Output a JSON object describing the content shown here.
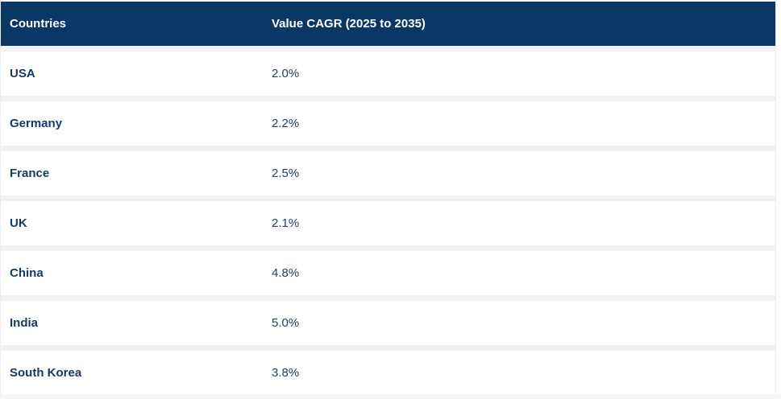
{
  "colors": {
    "header_bg": "#0b3766",
    "header_text": "#ffffff",
    "row_bg": "#ffffff",
    "separator": "#f1f1f5",
    "country_text": "#17386b",
    "value_text": "#1c406f"
  },
  "table": {
    "columns": [
      "Countries",
      "Value CAGR (2025 to 2035)"
    ],
    "rows": [
      {
        "country": "USA",
        "value": "2.0%"
      },
      {
        "country": "Germany",
        "value": "2.2%"
      },
      {
        "country": "France",
        "value": "2.5%"
      },
      {
        "country": "UK",
        "value": "2.1%"
      },
      {
        "country": "China",
        "value": "4.8%"
      },
      {
        "country": "India",
        "value": "5.0%"
      },
      {
        "country": "South Korea",
        "value": "3.8%"
      }
    ]
  },
  "chart_data": {
    "type": "table",
    "columns": [
      "Countries",
      "Value CAGR (2025 to 2035)"
    ],
    "categories": [
      "USA",
      "Germany",
      "France",
      "UK",
      "China",
      "India",
      "South Korea"
    ],
    "values_percent": [
      2.0,
      2.2,
      2.5,
      2.1,
      4.8,
      5.0,
      3.8
    ]
  }
}
